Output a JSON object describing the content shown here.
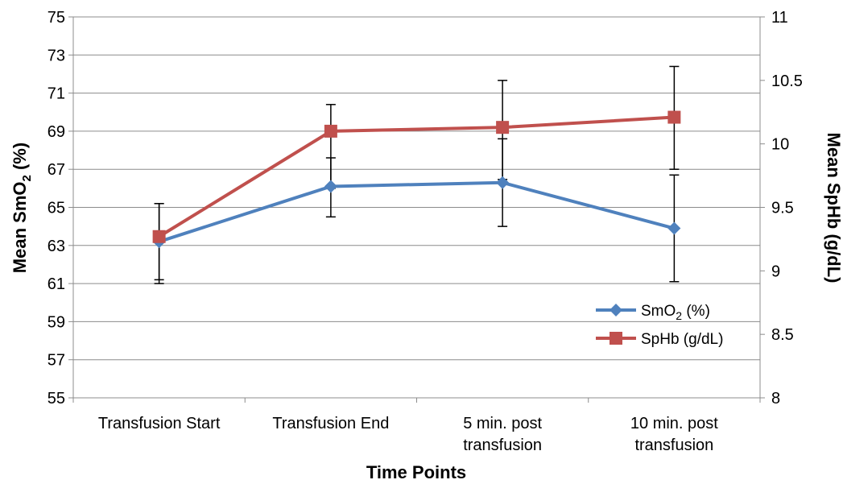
{
  "chart_data": {
    "type": "line",
    "categories": [
      [
        "Transfusion Start"
      ],
      [
        "Transfusion End"
      ],
      [
        "5 min. post",
        "transfusion"
      ],
      [
        "10 min. post",
        "transfusion"
      ]
    ],
    "xlabel": "Time Points",
    "ylabel_left": {
      "main": "Mean SmO",
      "sub": "2",
      "tail": " (%)"
    },
    "ylabel_right": "Mean SpHb (g/dL)",
    "ylim_left": [
      55,
      75
    ],
    "yticks_left": [
      55,
      57,
      59,
      61,
      63,
      65,
      67,
      69,
      71,
      73,
      75
    ],
    "ylim_right": [
      8,
      11
    ],
    "yticks_right": [
      "8",
      "8.5",
      "9",
      "9.5",
      "10",
      "10.5",
      "11"
    ],
    "grid": true,
    "legend_position": "lower-right",
    "series": [
      {
        "name": {
          "main": "SmO",
          "sub": "2",
          "tail": " (%)"
        },
        "axis": "left",
        "color": "#4F81BD",
        "marker": "diamond",
        "values": [
          63.2,
          66.1,
          66.3,
          63.9
        ],
        "error_low": [
          61.2,
          64.5,
          64.0,
          61.1
        ],
        "error_high": [
          65.2,
          67.6,
          68.6,
          66.7
        ]
      },
      {
        "name": {
          "main": "SpHb (g/dL)",
          "sub": "",
          "tail": ""
        },
        "axis": "right",
        "color": "#C0504D",
        "marker": "square",
        "values": [
          9.27,
          10.1,
          10.13,
          10.21
        ],
        "error_low": [
          8.9,
          9.65,
          9.72,
          9.8
        ],
        "error_high": [
          9.53,
          10.31,
          10.5,
          10.61
        ]
      }
    ]
  }
}
